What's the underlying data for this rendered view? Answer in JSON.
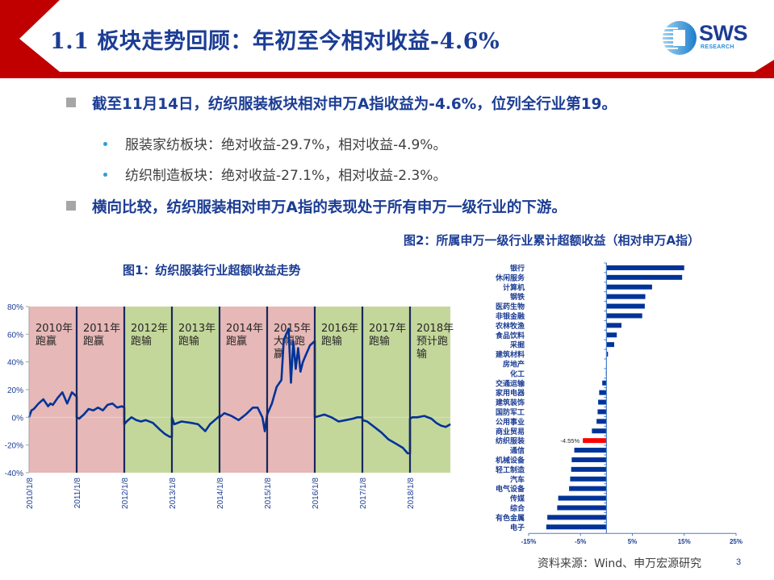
{
  "header": {
    "title": "1.1 板块走势回顾：年初至今相对收益-4.6%",
    "logo_text": "SWS",
    "logo_subtext": "RESEARCH",
    "brand_red": "#c00000",
    "brand_blue": "#1c3d94"
  },
  "bullets": {
    "main1": "截至11月14日，纺织服装板块相对申万A指收益为-4.6%，位列全行业第19。",
    "sub1": "服装家纺板块：绝对收益-29.7%，相对收益-4.9%。",
    "sub2": "纺织制造板块：绝对收益-27.1%，相对收益-2.3%。",
    "main2": "横向比较，纺织服装相对申万A指的表现处于所有申万一级行业的下游。"
  },
  "figure1": {
    "title": "图1：纺织服装行业超额收益走势"
  },
  "figure2": {
    "title": "图2：所属申万一级行业累计超额收益（相对申万A指）"
  },
  "footer": {
    "source": "资料来源：Wind、申万宏源研究",
    "page_number": "3"
  },
  "chart_data": [
    {
      "type": "line",
      "title": "图1：纺织服装行业超额收益走势",
      "xlabel": "",
      "ylabel": "",
      "ylim": [
        -0.4,
        0.8
      ],
      "yticks": [
        "80%",
        "60%",
        "40%",
        "20%",
        "0%",
        "-20%",
        "-40%"
      ],
      "x_tick_labels": [
        "2010/1/8",
        "2011/1/8",
        "2012/1/8",
        "2013/1/8",
        "2014/1/8",
        "2015/1/8",
        "2016/1/8",
        "2017/1/8",
        "2018/1/8"
      ],
      "line_color": "#003399",
      "background_bands": [
        {
          "year": "2010年",
          "label": "2010年\n跑赢",
          "result": "跑赢",
          "color": "#e6b8b7"
        },
        {
          "year": "2011年",
          "label": "2011年\n跑赢",
          "result": "跑赢",
          "color": "#e6b8b7"
        },
        {
          "year": "2012年",
          "label": "2012年\n跑输",
          "result": "跑输",
          "color": "#c4d79b"
        },
        {
          "year": "2013年",
          "label": "2013年\n跑输",
          "result": "跑输",
          "color": "#c4d79b"
        },
        {
          "year": "2014年",
          "label": "2014年\n跑赢",
          "result": "跑赢",
          "color": "#e6b8b7"
        },
        {
          "year": "2015年",
          "label": "2015年\n大幅跑赢",
          "result": "大幅跑赢",
          "color": "#e6b8b7"
        },
        {
          "year": "2016年",
          "label": "2016年\n跑输",
          "result": "跑输",
          "color": "#c4d79b"
        },
        {
          "year": "2017年",
          "label": "2017年\n跑输",
          "result": "跑输",
          "color": "#c4d79b"
        },
        {
          "year": "2018年",
          "label": "2018年\n预计跑输",
          "result": "预计跑输",
          "color": "#c4d79b"
        }
      ],
      "series": [
        {
          "name": "纺织服装超额收益",
          "x": [
            0,
            0.05,
            0.1,
            0.2,
            0.3,
            0.4,
            0.45,
            0.5,
            0.6,
            0.7,
            0.8,
            0.85,
            0.9,
            1.0,
            1.0,
            1.05,
            1.15,
            1.25,
            1.35,
            1.45,
            1.55,
            1.65,
            1.75,
            1.85,
            1.95,
            2.0,
            2.0,
            2.05,
            2.15,
            2.25,
            2.35,
            2.45,
            2.6,
            2.75,
            2.85,
            2.95,
            3.0,
            3.0,
            3.05,
            3.2,
            3.4,
            3.55,
            3.7,
            3.8,
            3.9,
            4.0,
            4.0,
            4.1,
            4.25,
            4.4,
            4.55,
            4.7,
            4.8,
            4.9,
            4.95,
            5.0,
            5.0,
            5.1,
            5.2,
            5.3,
            5.35,
            5.45,
            5.5,
            5.55,
            5.6,
            5.65,
            5.7,
            5.75,
            5.8,
            5.9,
            6.0,
            6.0,
            6.1,
            6.2,
            6.35,
            6.5,
            6.65,
            6.8,
            6.9,
            7.0,
            7.0,
            7.1,
            7.25,
            7.4,
            7.55,
            7.7,
            7.85,
            7.95,
            8.0,
            8.0,
            8.05,
            8.15,
            8.3,
            8.45,
            8.55,
            8.65,
            8.75,
            8.85
          ],
          "values": [
            0.0,
            0.05,
            0.06,
            0.1,
            0.13,
            0.08,
            0.1,
            0.09,
            0.14,
            0.18,
            0.1,
            0.14,
            0.18,
            0.15,
            0.0,
            -0.01,
            0.02,
            0.06,
            0.05,
            0.07,
            0.05,
            0.09,
            0.1,
            0.07,
            0.08,
            0.07,
            -0.05,
            -0.03,
            0.0,
            -0.02,
            -0.03,
            -0.02,
            -0.04,
            -0.09,
            -0.12,
            -0.14,
            -0.14,
            0.0,
            -0.05,
            -0.03,
            -0.04,
            -0.05,
            -0.1,
            -0.05,
            -0.02,
            0.01,
            0.0,
            0.03,
            0.01,
            -0.02,
            0.02,
            0.07,
            0.07,
            0.0,
            -0.1,
            0.02,
            0.02,
            0.1,
            0.22,
            0.27,
            0.56,
            0.64,
            0.25,
            0.55,
            0.35,
            0.5,
            0.33,
            0.4,
            0.44,
            0.52,
            0.55,
            0.0,
            0.01,
            0.02,
            0.0,
            -0.03,
            -0.02,
            -0.01,
            0.0,
            0.0,
            -0.02,
            -0.03,
            -0.07,
            -0.11,
            -0.16,
            -0.19,
            -0.22,
            -0.26,
            -0.26,
            -0.01,
            0.0,
            0.0,
            0.01,
            -0.01,
            -0.04,
            -0.06,
            -0.07,
            -0.05
          ]
        }
      ]
    },
    {
      "type": "bar",
      "orientation": "horizontal",
      "title": "图2：所属申万一级行业累计超额收益（相对申万A指）",
      "xlabel": "",
      "ylabel": "",
      "xlim": [
        -0.15,
        0.25
      ],
      "xticks": [
        "-15%",
        "-5%",
        "5%",
        "15%",
        "25%"
      ],
      "categories": [
        "银行",
        "休闲服务",
        "计算机",
        "钢铁",
        "医药生物",
        "非银金融",
        "农林牧渔",
        "食品饮料",
        "采掘",
        "建筑材料",
        "房地产",
        "化工",
        "交通运输",
        "家用电器",
        "建筑装饰",
        "国防军工",
        "公用事业",
        "商业贸易",
        "纺织服装",
        "通信",
        "机械设备",
        "轻工制造",
        "汽车",
        "电气设备",
        "传媒",
        "综合",
        "有色金属",
        "电子"
      ],
      "values": [
        15.0,
        14.6,
        8.8,
        7.5,
        7.4,
        6.9,
        2.9,
        2.0,
        1.5,
        0.3,
        0.0,
        -0.1,
        -0.8,
        -1.4,
        -1.6,
        -1.7,
        -1.9,
        -2.8,
        -4.55,
        -6.2,
        -6.7,
        -6.8,
        -7.0,
        -7.2,
        -9.3,
        -9.5,
        -11.4,
        -11.6
      ],
      "unit": "%",
      "highlight": {
        "category": "纺织服装",
        "color": "#ff0000",
        "data_label": "-4.55%"
      },
      "bar_color": "#003399"
    }
  ]
}
